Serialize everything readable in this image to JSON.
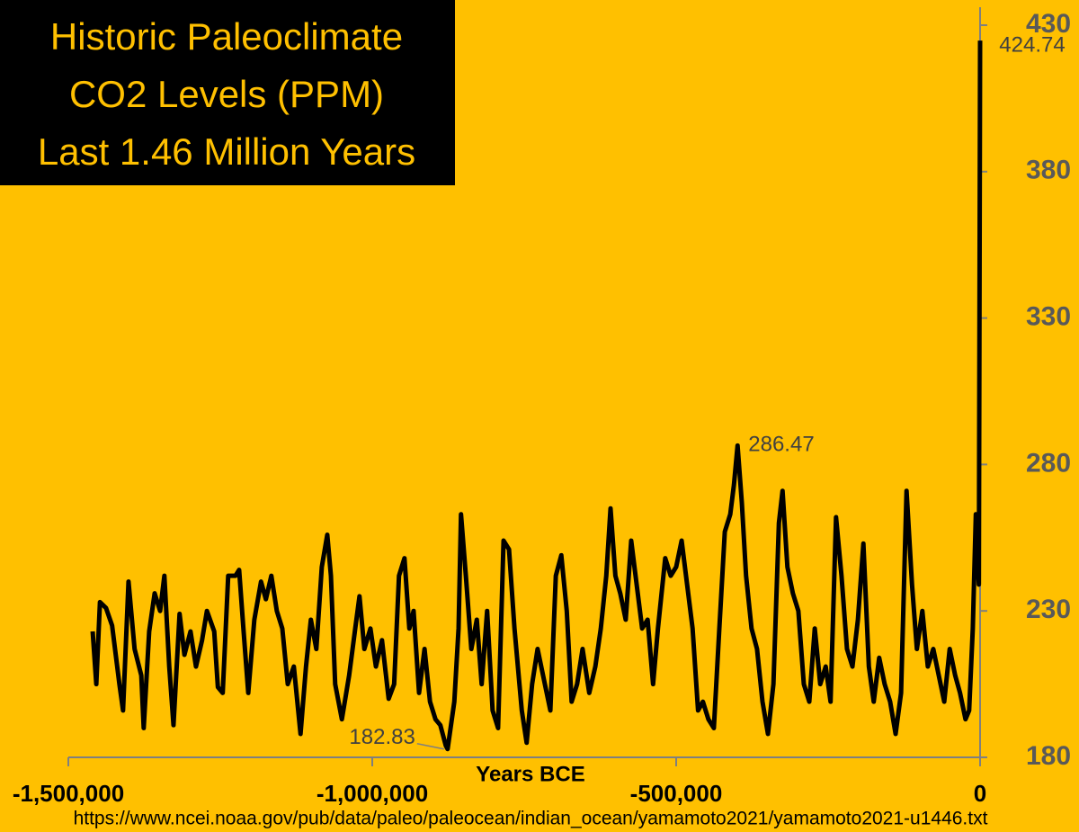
{
  "chart_data": {
    "type": "line",
    "title": [
      "Historic Paleoclimate",
      "CO2 Levels (PPM)",
      "Last 1.46 Million Years"
    ],
    "x_label": "Years BCE",
    "source": "https://www.ncei.noaa.gov/pub/data/paleo/paleocean/indian_ocean/yamamoto2021/yamamoto2021-u1446.txt",
    "xlim": [
      -1500000,
      0
    ],
    "ylim": [
      180,
      430
    ],
    "xticks": [
      {
        "value": -1500000,
        "label": "-1,500,000"
      },
      {
        "value": -1000000,
        "label": "-1,000,000"
      },
      {
        "value": -500000,
        "label": "-500,000"
      },
      0
    ],
    "yticks": [
      180,
      230,
      280,
      330,
      380,
      430
    ],
    "series": [
      {
        "name": "CO2",
        "color": "#000000",
        "x": [
          -1460000,
          -1454000,
          -1448000,
          -1438000,
          -1428000,
          -1416000,
          -1410000,
          -1401000,
          -1391000,
          -1380000,
          -1376000,
          -1367000,
          -1358000,
          -1349000,
          -1342000,
          -1334000,
          -1327000,
          -1317000,
          -1309000,
          -1299000,
          -1290000,
          -1280000,
          -1272000,
          -1260000,
          -1254000,
          -1246000,
          -1237000,
          -1225000,
          -1219000,
          -1212000,
          -1204000,
          -1194000,
          -1183000,
          -1175000,
          -1166000,
          -1157000,
          -1148000,
          -1139000,
          -1129000,
          -1118000,
          -1109000,
          -1101000,
          -1092000,
          -1083000,
          -1074000,
          -1068000,
          -1061000,
          -1050000,
          -1038000,
          -1028000,
          -1021000,
          -1013000,
          -1003000,
          -994000,
          -984000,
          -973000,
          -964000,
          -956000,
          -947000,
          -939000,
          -932000,
          -923000,
          -914000,
          -905000,
          -896000,
          -888000,
          -879000,
          -876000,
          -865000,
          -858000,
          -854000,
          -846000,
          -837000,
          -828000,
          -820000,
          -811000,
          -802000,
          -793000,
          -784000,
          -775000,
          -766000,
          -754000,
          -746000,
          -737000,
          -728000,
          -716000,
          -707000,
          -698000,
          -689000,
          -680000,
          -672000,
          -663000,
          -654000,
          -643000,
          -633000,
          -624000,
          -615000,
          -608000,
          -600000,
          -592000,
          -583000,
          -574000,
          -565000,
          -556000,
          -547000,
          -538000,
          -530000,
          -518000,
          -509000,
          -500000,
          -491000,
          -482000,
          -473000,
          -464000,
          -456000,
          -447000,
          -438000,
          -429000,
          -420000,
          -411000,
          -405000,
          -399000,
          -392000,
          -385000,
          -376000,
          -367000,
          -358000,
          -349000,
          -340000,
          -331000,
          -325000,
          -317000,
          -308000,
          -299000,
          -290000,
          -281000,
          -272000,
          -263000,
          -254000,
          -246000,
          -237000,
          -228000,
          -219000,
          -210000,
          -201000,
          -192000,
          -183000,
          -175000,
          -166000,
          -157000,
          -148000,
          -139000,
          -130000,
          -121000,
          -112000,
          -104000,
          -95000,
          -86000,
          -77000,
          -68000,
          -59000,
          -50000,
          -41000,
          -33000,
          -24000,
          -18000,
          -12000,
          -7000,
          -2000,
          0
        ],
        "values": [
          223,
          205,
          233,
          231,
          225,
          205,
          196,
          240,
          217,
          208,
          190,
          223,
          236,
          230,
          242,
          211,
          191,
          229,
          215,
          223,
          211,
          220,
          230,
          223,
          204,
          202,
          242,
          242,
          244,
          224,
          202,
          227,
          240,
          234,
          242,
          230,
          224,
          205,
          211,
          188,
          211,
          227,
          217,
          245,
          256,
          242,
          205,
          193,
          208,
          224,
          235,
          217,
          224,
          211,
          220,
          200,
          205,
          242,
          248,
          224,
          230,
          202,
          217,
          199,
          193,
          191,
          184,
          182.83,
          199,
          224,
          263,
          242,
          217,
          227,
          205,
          230,
          196,
          190,
          254,
          251,
          224,
          196,
          185,
          205,
          217,
          205,
          196,
          242,
          249,
          230,
          199,
          205,
          217,
          202,
          211,
          224,
          242,
          265,
          242,
          236,
          227,
          254,
          239,
          224,
          227,
          205,
          224,
          248,
          242,
          245,
          254,
          239,
          224,
          196,
          199,
          193,
          190,
          224,
          257,
          263,
          273,
          286.47,
          267,
          242,
          224,
          217,
          199,
          188,
          205,
          260,
          271,
          245,
          236,
          230,
          205,
          199,
          224,
          205,
          211,
          199,
          262,
          242,
          217,
          211,
          227,
          253,
          211,
          199,
          214,
          205,
          199,
          188,
          202,
          271,
          239,
          217,
          230,
          211,
          217,
          208,
          199,
          217,
          208,
          202,
          193,
          196,
          224,
          263,
          239,
          424.74
        ]
      }
    ],
    "annotations": [
      {
        "label": "424.74",
        "x": 0,
        "y": 424.74
      },
      {
        "label": "286.47",
        "x": -399000,
        "y": 286.47
      },
      {
        "label": "182.83",
        "x": -876000,
        "y": 182.83
      }
    ]
  }
}
